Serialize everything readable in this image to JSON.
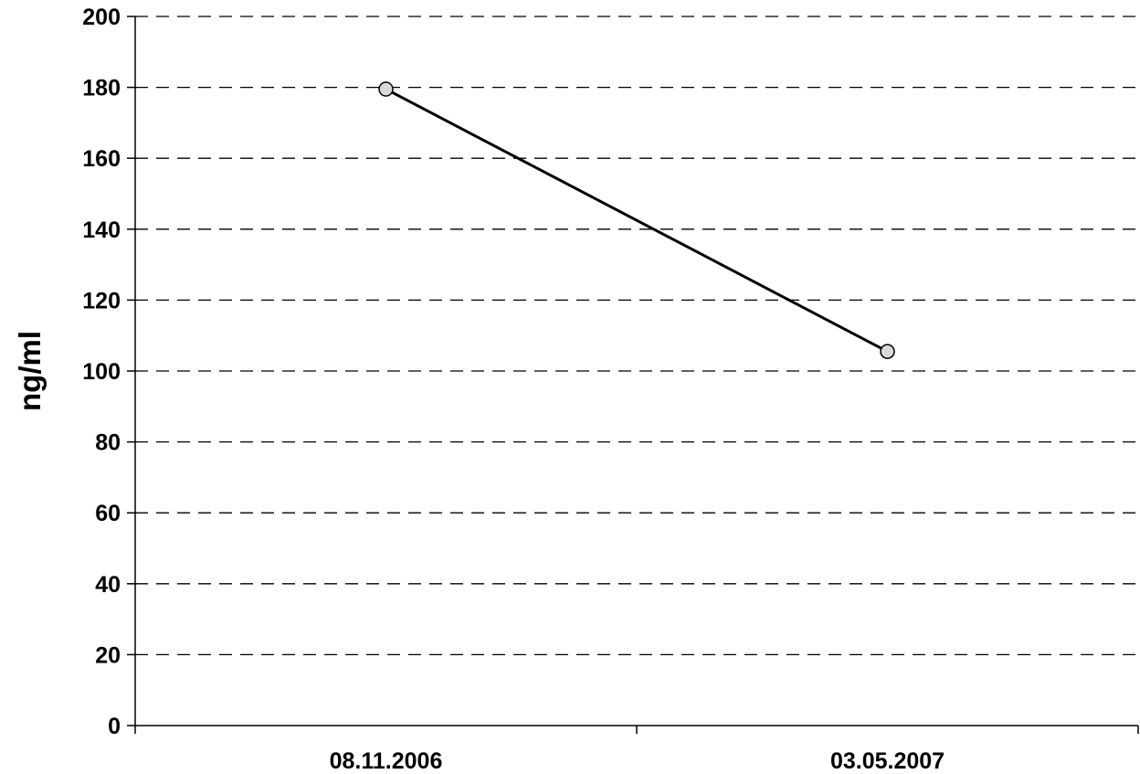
{
  "chart_data": {
    "type": "line",
    "title": "",
    "xlabel": "",
    "ylabel": "ng/ml",
    "categories": [
      "08.11.2006",
      "03.05.2007"
    ],
    "series": [
      {
        "values": [
          179.5,
          105.5
        ]
      }
    ],
    "ylim": [
      0,
      200
    ],
    "yticks": [
      "0",
      "20",
      "40",
      "60",
      "80",
      "100",
      "120",
      "140",
      "160",
      "180",
      "200"
    ],
    "grid": "horizontal dashed",
    "legend": "none",
    "colors": {
      "line": "#000000",
      "marker_fill": "#d9d9d9",
      "grid": "#000000",
      "axis": "#000000"
    }
  }
}
